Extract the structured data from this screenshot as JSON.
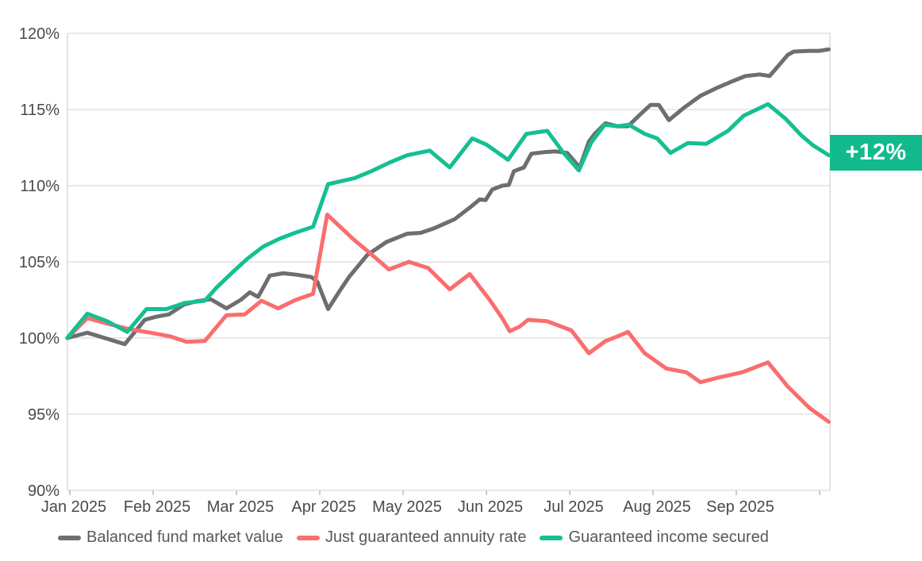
{
  "chart_data": {
    "type": "line",
    "x_axis": {
      "labels": [
        "Jan 2025",
        "Feb 2025",
        "Mar 2025",
        "Apr 2025",
        "May 2025",
        "Jun 2025",
        "Jul 2025",
        "Aug 2025",
        "Sep 2025"
      ],
      "unit": "month",
      "tick_count": 10
    },
    "y_axis": {
      "min": 90,
      "max": 120,
      "step": 5,
      "unit": "%",
      "tick_labels": [
        "120%",
        "115%",
        "110%",
        "105%",
        "100%",
        "95%",
        "90%"
      ],
      "tick_values": [
        120,
        115,
        110,
        105,
        100,
        95,
        90
      ]
    },
    "grid": "horizontal",
    "legend_position": "bottom",
    "series": [
      {
        "name": "Balanced fund market value",
        "color": "#6d6e70",
        "points": [
          [
            -0.03,
            100.0
          ],
          [
            0.21,
            100.35
          ],
          [
            0.45,
            99.95
          ],
          [
            0.66,
            99.6
          ],
          [
            0.9,
            101.2
          ],
          [
            1.04,
            101.4
          ],
          [
            1.19,
            101.55
          ],
          [
            1.37,
            102.2
          ],
          [
            1.51,
            102.4
          ],
          [
            1.69,
            102.55
          ],
          [
            1.88,
            101.95
          ],
          [
            2.05,
            102.5
          ],
          [
            2.16,
            103.0
          ],
          [
            2.26,
            102.7
          ],
          [
            2.4,
            104.1
          ],
          [
            2.56,
            104.25
          ],
          [
            2.73,
            104.15
          ],
          [
            2.9,
            104.0
          ],
          [
            2.97,
            103.7
          ],
          [
            3.1,
            101.9
          ],
          [
            3.24,
            103.1
          ],
          [
            3.35,
            104.0
          ],
          [
            3.57,
            105.45
          ],
          [
            3.8,
            106.3
          ],
          [
            4.05,
            106.85
          ],
          [
            4.21,
            106.9
          ],
          [
            4.37,
            107.2
          ],
          [
            4.62,
            107.8
          ],
          [
            4.81,
            108.6
          ],
          [
            4.92,
            109.1
          ],
          [
            4.99,
            109.05
          ],
          [
            5.07,
            109.75
          ],
          [
            5.19,
            110.0
          ],
          [
            5.27,
            110.05
          ],
          [
            5.33,
            110.95
          ],
          [
            5.45,
            111.2
          ],
          [
            5.54,
            112.1
          ],
          [
            5.69,
            112.2
          ],
          [
            5.83,
            112.25
          ],
          [
            5.97,
            112.15
          ],
          [
            6.12,
            111.2
          ],
          [
            6.23,
            112.9
          ],
          [
            6.3,
            113.4
          ],
          [
            6.43,
            114.1
          ],
          [
            6.57,
            113.9
          ],
          [
            6.7,
            113.9
          ],
          [
            6.85,
            114.7
          ],
          [
            6.97,
            115.3
          ],
          [
            7.07,
            115.3
          ],
          [
            7.19,
            114.3
          ],
          [
            7.38,
            115.15
          ],
          [
            7.57,
            115.9
          ],
          [
            7.76,
            116.4
          ],
          [
            7.95,
            116.85
          ],
          [
            8.11,
            117.2
          ],
          [
            8.28,
            117.3
          ],
          [
            8.4,
            117.2
          ],
          [
            8.62,
            118.6
          ],
          [
            8.69,
            118.8
          ],
          [
            8.88,
            118.85
          ],
          [
            8.99,
            118.85
          ],
          [
            9.11,
            118.95
          ]
        ]
      },
      {
        "name": "Just guaranteed annuity rate",
        "color": "#fa6e6e",
        "points": [
          [
            -0.03,
            100.0
          ],
          [
            0.21,
            101.3
          ],
          [
            0.45,
            100.95
          ],
          [
            0.7,
            100.6
          ],
          [
            0.97,
            100.35
          ],
          [
            1.21,
            100.1
          ],
          [
            1.4,
            99.75
          ],
          [
            1.62,
            99.8
          ],
          [
            1.88,
            101.5
          ],
          [
            2.1,
            101.55
          ],
          [
            2.3,
            102.45
          ],
          [
            2.5,
            101.95
          ],
          [
            2.71,
            102.5
          ],
          [
            2.92,
            102.9
          ],
          [
            3.09,
            108.1
          ],
          [
            3.4,
            106.5
          ],
          [
            3.64,
            105.4
          ],
          [
            3.83,
            104.5
          ],
          [
            4.07,
            105.0
          ],
          [
            4.3,
            104.6
          ],
          [
            4.56,
            103.2
          ],
          [
            4.8,
            104.2
          ],
          [
            5.04,
            102.5
          ],
          [
            5.19,
            101.3
          ],
          [
            5.28,
            100.45
          ],
          [
            5.4,
            100.75
          ],
          [
            5.5,
            101.2
          ],
          [
            5.73,
            101.1
          ],
          [
            6.02,
            100.5
          ],
          [
            6.23,
            99.0
          ],
          [
            6.43,
            99.8
          ],
          [
            6.57,
            100.1
          ],
          [
            6.7,
            100.4
          ],
          [
            6.9,
            99.0
          ],
          [
            7.16,
            98.0
          ],
          [
            7.4,
            97.75
          ],
          [
            7.57,
            97.1
          ],
          [
            7.78,
            97.4
          ],
          [
            8.07,
            97.75
          ],
          [
            8.38,
            98.4
          ],
          [
            8.62,
            96.8
          ],
          [
            8.88,
            95.4
          ],
          [
            9.11,
            94.5
          ]
        ]
      },
      {
        "name": "Guaranteed income secured",
        "color": "#15bf92",
        "points": [
          [
            -0.03,
            100.0
          ],
          [
            0.21,
            101.6
          ],
          [
            0.45,
            101.1
          ],
          [
            0.69,
            100.4
          ],
          [
            0.92,
            101.9
          ],
          [
            1.16,
            101.9
          ],
          [
            1.38,
            102.3
          ],
          [
            1.62,
            102.45
          ],
          [
            1.76,
            103.3
          ],
          [
            1.94,
            104.25
          ],
          [
            2.13,
            105.2
          ],
          [
            2.32,
            106.0
          ],
          [
            2.51,
            106.5
          ],
          [
            2.7,
            106.9
          ],
          [
            2.92,
            107.3
          ],
          [
            3.1,
            110.1
          ],
          [
            3.42,
            110.5
          ],
          [
            3.64,
            111.0
          ],
          [
            3.83,
            111.5
          ],
          [
            4.05,
            112.0
          ],
          [
            4.32,
            112.3
          ],
          [
            4.56,
            111.2
          ],
          [
            4.83,
            113.1
          ],
          [
            5.0,
            112.7
          ],
          [
            5.26,
            111.7
          ],
          [
            5.48,
            113.4
          ],
          [
            5.73,
            113.6
          ],
          [
            5.92,
            112.2
          ],
          [
            6.11,
            111.0
          ],
          [
            6.26,
            112.85
          ],
          [
            6.42,
            114.0
          ],
          [
            6.57,
            113.9
          ],
          [
            6.71,
            114.0
          ],
          [
            6.9,
            113.4
          ],
          [
            7.05,
            113.1
          ],
          [
            7.21,
            112.15
          ],
          [
            7.42,
            112.8
          ],
          [
            7.64,
            112.75
          ],
          [
            7.9,
            113.6
          ],
          [
            8.09,
            114.6
          ],
          [
            8.38,
            115.35
          ],
          [
            8.59,
            114.4
          ],
          [
            8.78,
            113.3
          ],
          [
            8.92,
            112.65
          ],
          [
            9.11,
            112.0
          ]
        ]
      }
    ],
    "annotation": {
      "label": "+12%",
      "color": "#12b98c",
      "text_color": "#ffffff",
      "attached_series": "Guaranteed income secured",
      "attached_value": 112
    },
    "colors": {
      "gridline": "#dcdcdc",
      "axis_line": "#d2d2d2",
      "tick_mark": "#aaaaaa",
      "axis_text": "#4a4a4a",
      "legend_text": "#57585a"
    }
  },
  "legend": {
    "items": [
      {
        "label": "Balanced fund market value",
        "color": "#6d6e70"
      },
      {
        "label": "Just guaranteed annuity rate",
        "color": "#fa6e6e"
      },
      {
        "label": "Guaranteed income secured",
        "color": "#15bf92"
      }
    ]
  }
}
